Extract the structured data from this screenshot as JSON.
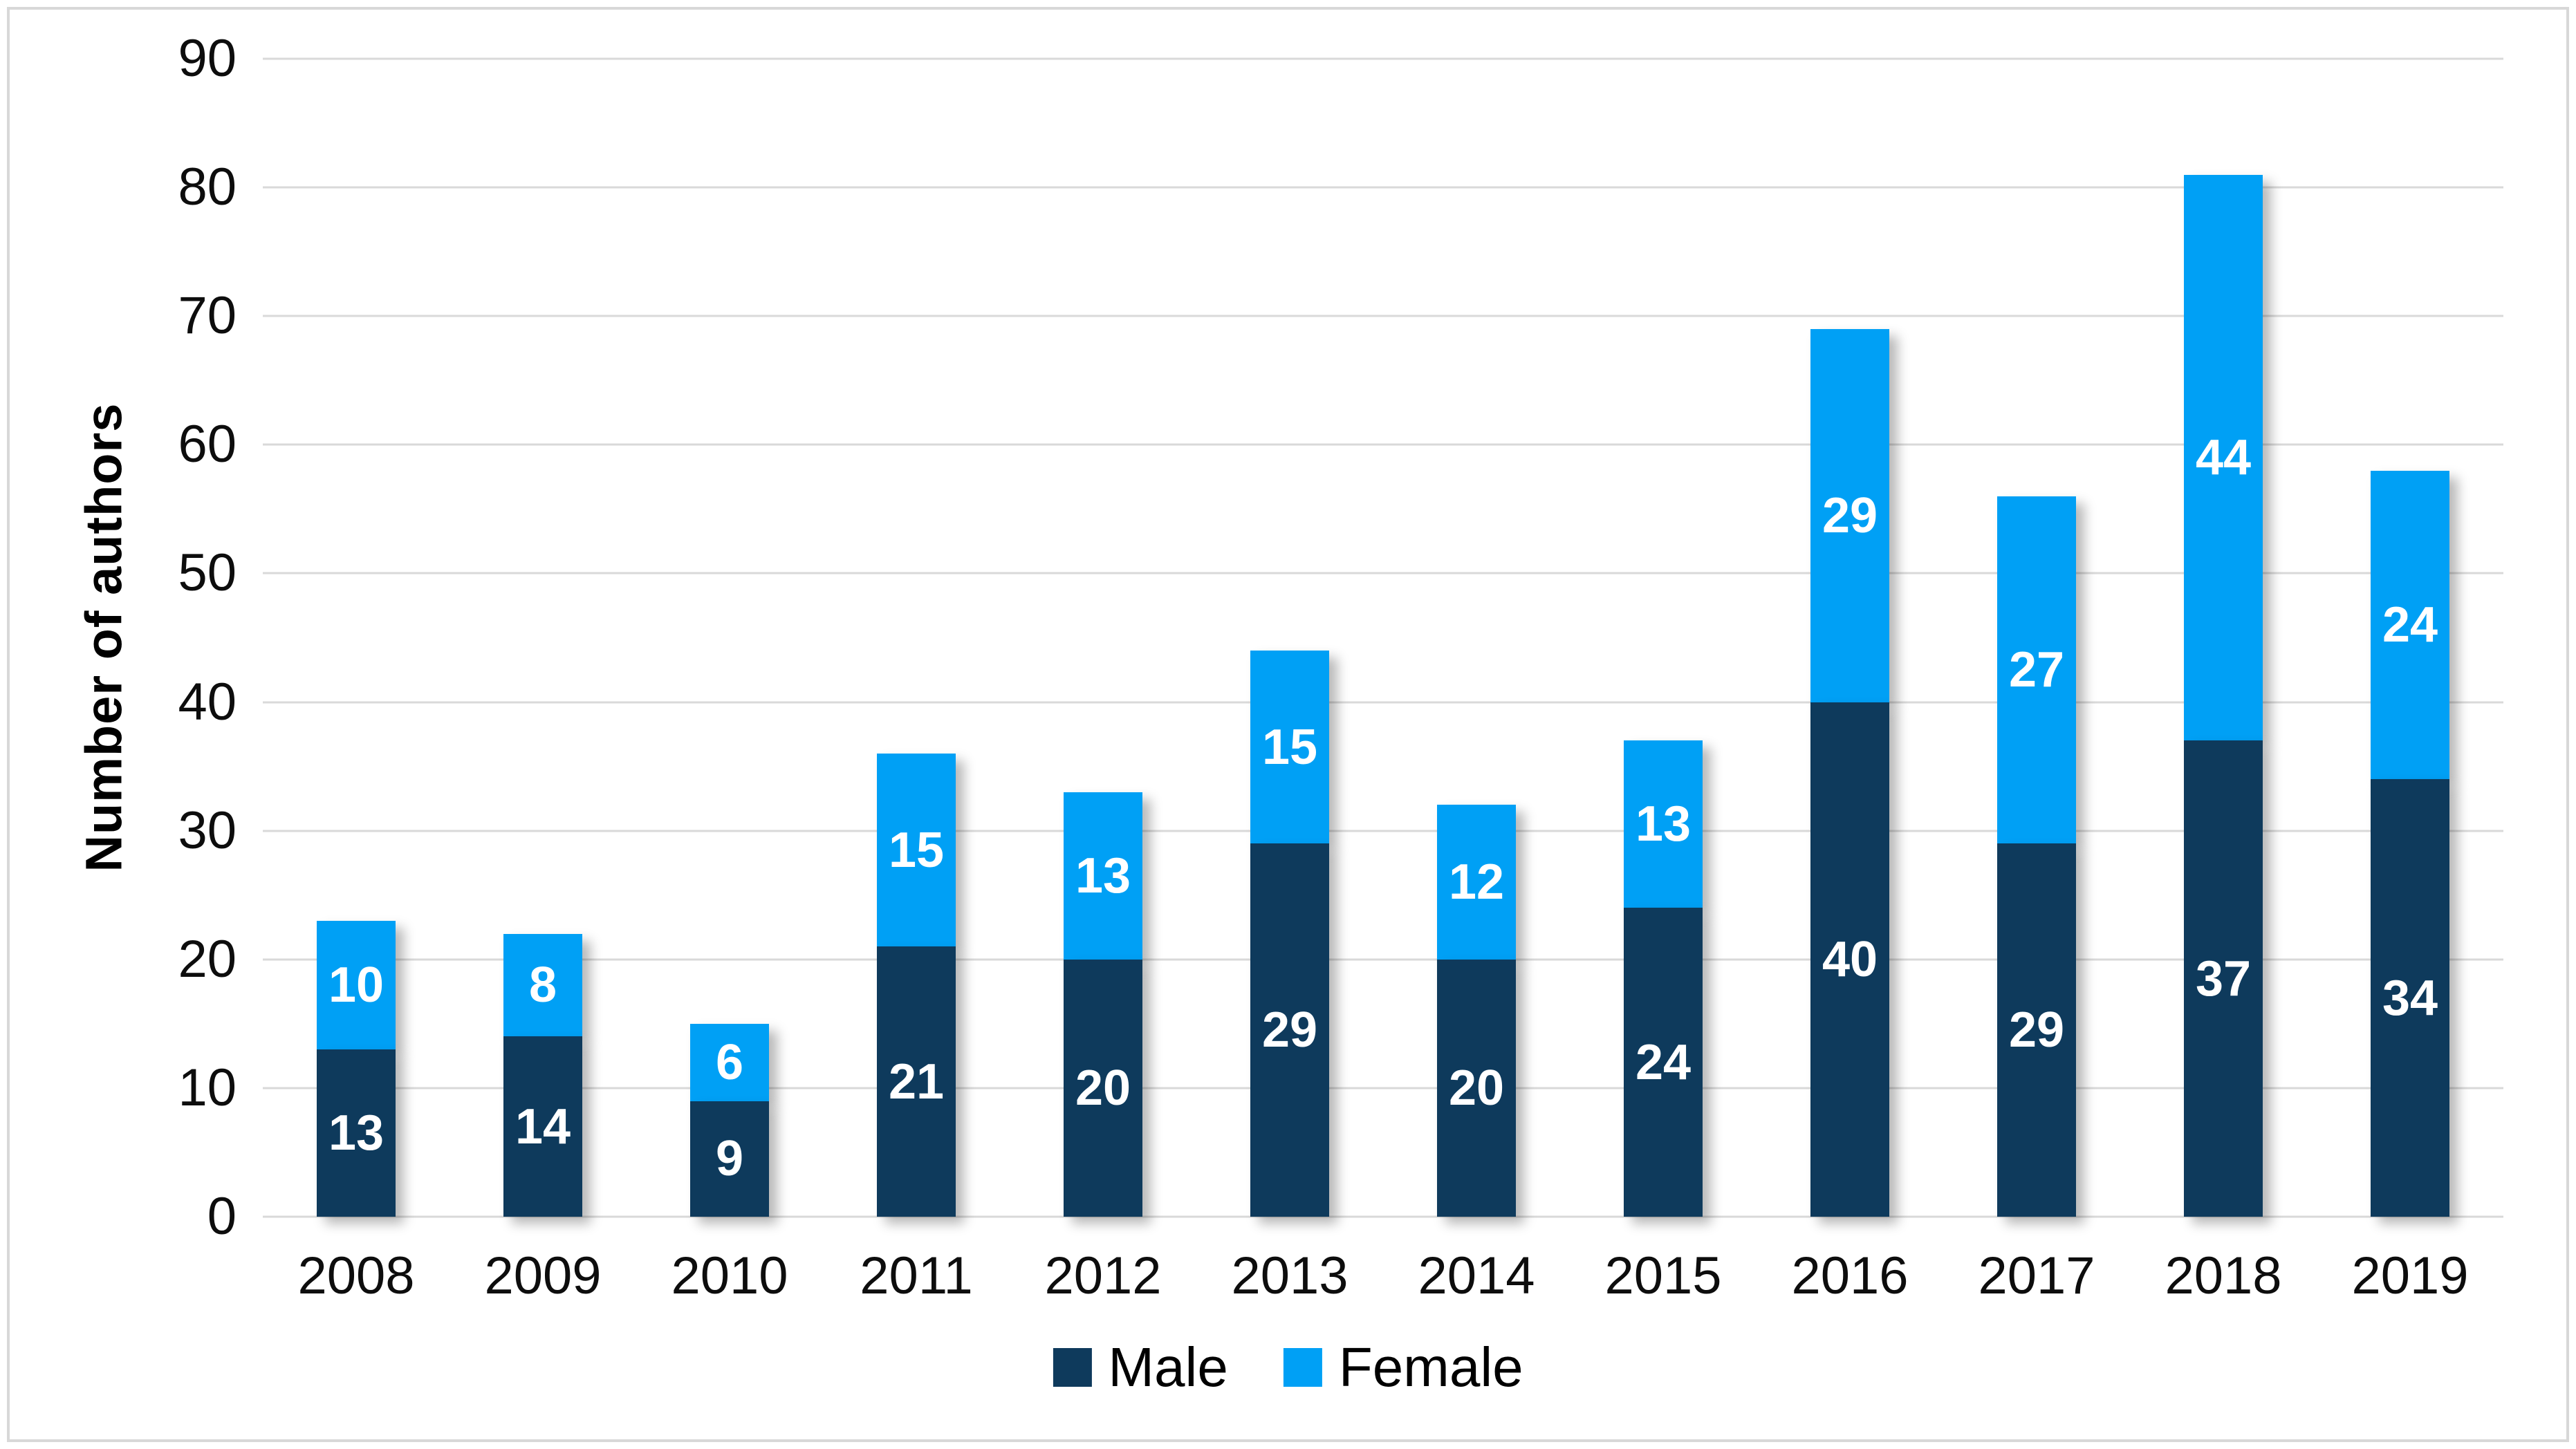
{
  "chart_data": {
    "type": "bar",
    "stacked": true,
    "title": "",
    "categories": [
      "2008",
      "2009",
      "2010",
      "2011",
      "2012",
      "2013",
      "2014",
      "2015",
      "2016",
      "2017",
      "2018",
      "2019"
    ],
    "series": [
      {
        "name": "Male",
        "color": "#0e3a5c",
        "values": [
          13,
          14,
          9,
          21,
          20,
          29,
          20,
          24,
          40,
          29,
          37,
          34
        ]
      },
      {
        "name": "Female",
        "color": "#00a0f5",
        "values": [
          10,
          8,
          6,
          15,
          13,
          15,
          12,
          13,
          29,
          27,
          44,
          24
        ]
      }
    ],
    "ylabel": "Number of authors",
    "ylim": [
      0,
      90
    ],
    "yticks": [
      0,
      10,
      20,
      30,
      40,
      50,
      60,
      70,
      80,
      90
    ],
    "grid": true,
    "gridline_color": "#d9d9d9",
    "value_labels": "inside",
    "value_label_color": "#ffffff",
    "legend_position": "bottom"
  }
}
